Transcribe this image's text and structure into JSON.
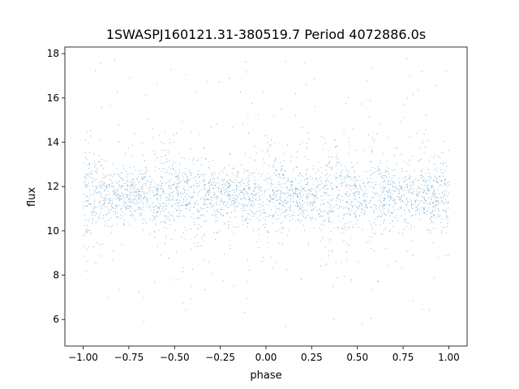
{
  "chart_data": {
    "type": "scatter",
    "title": "1SWASPJ160121.31-380519.7 Period 4072886.0s",
    "xlabel": "phase",
    "ylabel": "flux",
    "xlim": [
      -1.1,
      1.1
    ],
    "ylim": [
      4.8,
      18.3
    ],
    "xticks": [
      -1.0,
      -0.75,
      -0.5,
      -0.25,
      0.0,
      0.25,
      0.5,
      0.75,
      1.0
    ],
    "xtick_labels": [
      "−1.00",
      "−0.75",
      "−0.50",
      "−0.25",
      "0.00",
      "0.25",
      "0.50",
      "0.75",
      "1.00"
    ],
    "yticks": [
      6,
      8,
      10,
      12,
      14,
      16,
      18
    ],
    "ytick_labels": [
      "6",
      "8",
      "10",
      "12",
      "14",
      "16",
      "18"
    ],
    "grid": false,
    "legend": "none",
    "series_color": "#1f77b4",
    "series": [
      {
        "phase_range": [
          -1.0,
          1.0
        ],
        "flux_median": 11.6,
        "flux_core_range": [
          10.0,
          13.2
        ],
        "flux_full_range": [
          5.4,
          17.8
        ],
        "point_count_approx": 30000,
        "repeats_every_phase": 1.0,
        "broad_phases": [
          -0.97,
          -0.62,
          -0.55,
          -0.38,
          -0.01,
          0.03,
          0.35,
          0.43,
          0.6,
          0.97
        ],
        "narrow_phases": [
          -0.2,
          -0.12,
          0.0,
          0.22,
          0.27,
          0.78,
          0.87,
          1.0
        ]
      }
    ]
  }
}
